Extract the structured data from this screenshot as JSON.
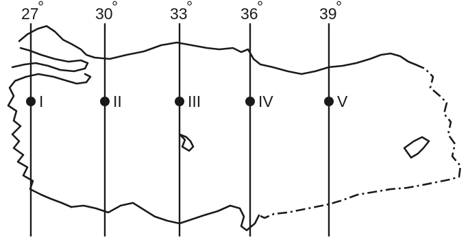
{
  "meridians": [
    {
      "degree": "27",
      "symbol": "°",
      "point_label": "I"
    },
    {
      "degree": "30",
      "symbol": "°",
      "point_label": "II"
    },
    {
      "degree": "33",
      "symbol": "°",
      "point_label": "III"
    },
    {
      "degree": "36",
      "symbol": "°",
      "point_label": "IV"
    },
    {
      "degree": "39",
      "symbol": "°",
      "point_label": "V"
    }
  ],
  "colors": {
    "line": "#1a1a1a",
    "background": "#ffffff"
  }
}
